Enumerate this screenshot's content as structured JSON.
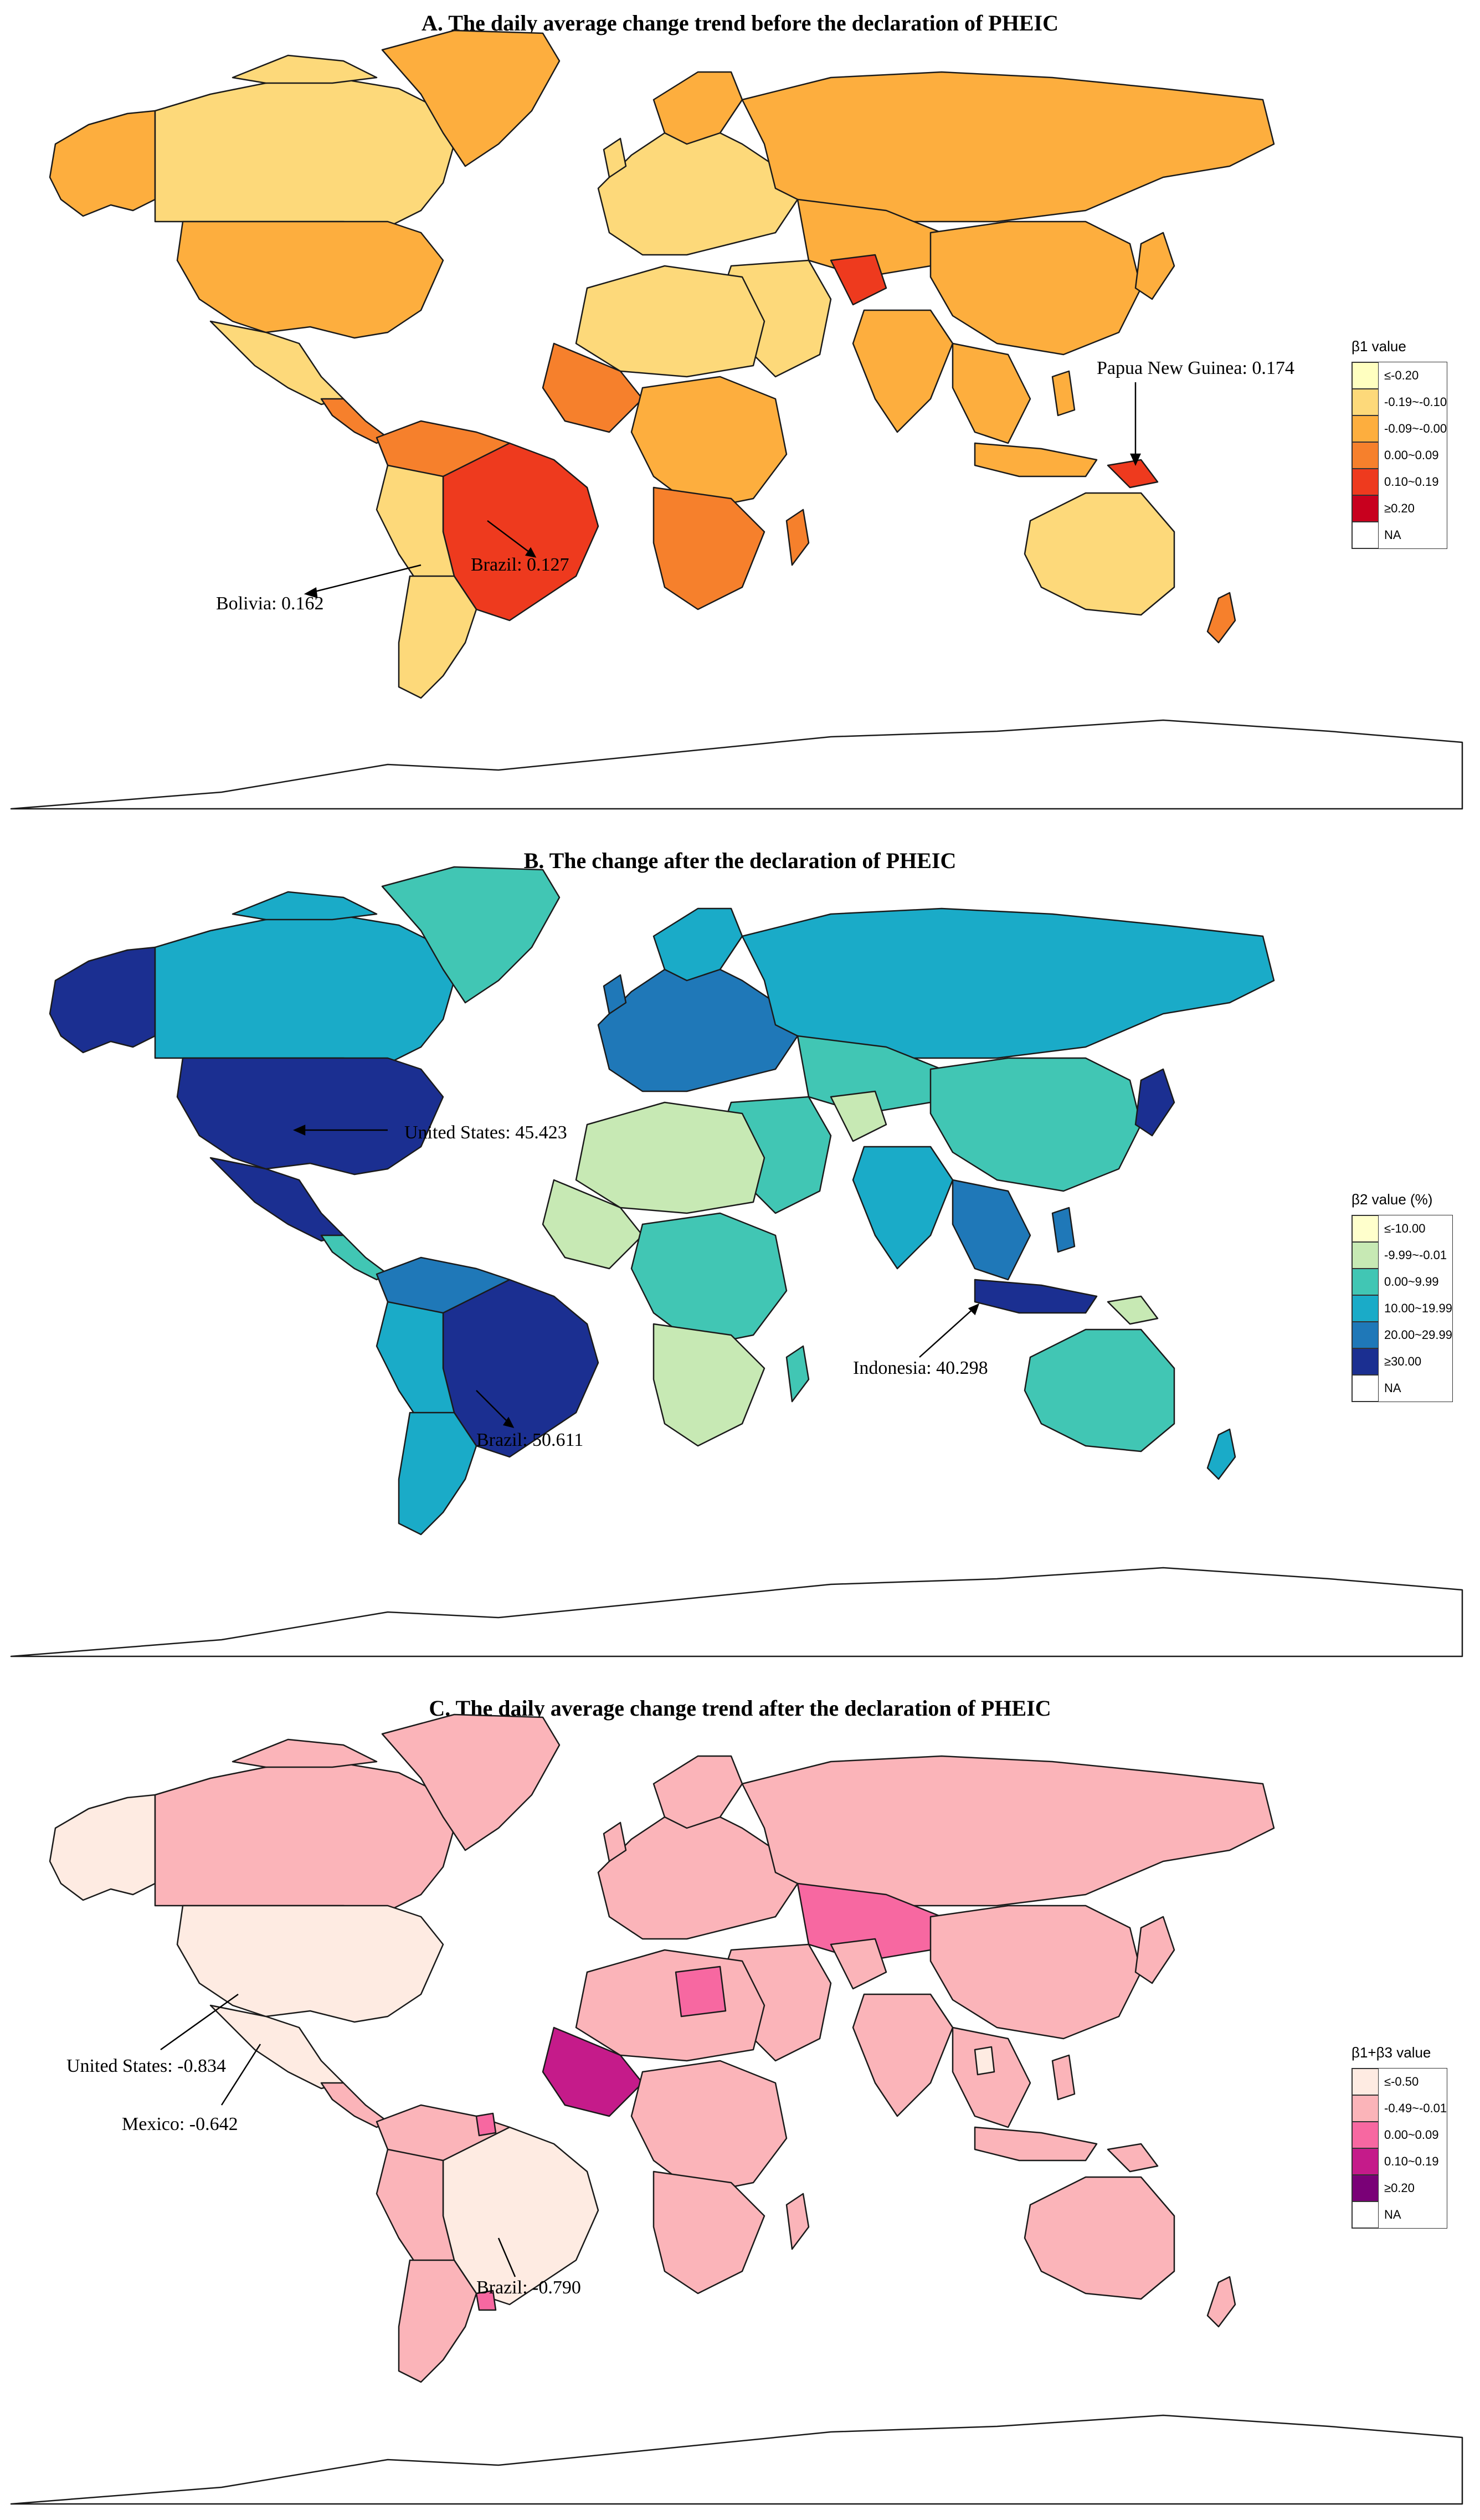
{
  "panels": [
    {
      "title": "A. The daily average change trend before the declaration of PHEIC",
      "legend": {
        "title": "β1 value",
        "items": [
          {
            "label": "≤-0.20",
            "color": "#ffffc0"
          },
          {
            "label": "-0.19~-0.10",
            "color": "#fdd97a"
          },
          {
            "label": "-0.09~-0.00",
            "color": "#fdae3e"
          },
          {
            "label": "0.00~0.09",
            "color": "#f6802c"
          },
          {
            "label": "0.10~0.19",
            "color": "#ee3a1e"
          },
          {
            "label": "≥0.20",
            "color": "#c8001e"
          },
          {
            "label": "NA",
            "color": "#ffffff"
          }
        ]
      },
      "annotations": [
        {
          "text": "Papua New Guinea: 0.174"
        },
        {
          "text": "Bolivia: 0.162"
        },
        {
          "text": "Brazil: 0.127"
        }
      ]
    },
    {
      "title": "B. The change after the declaration of PHEIC",
      "legend": {
        "title": "β2 value (%)",
        "items": [
          {
            "label": "≤-10.00",
            "color": "#ffffcc"
          },
          {
            "label": "-9.99~-0.01",
            "color": "#c7e9b4"
          },
          {
            "label": "0.00~9.99",
            "color": "#41c6b4"
          },
          {
            "label": "10.00~19.99",
            "color": "#1aabc8"
          },
          {
            "label": "20.00~29.99",
            "color": "#1f78b8"
          },
          {
            "label": "≥30.00",
            "color": "#1b2f91"
          },
          {
            "label": "NA",
            "color": "#ffffff"
          }
        ]
      },
      "annotations": [
        {
          "text": "United States: 45.423"
        },
        {
          "text": "Brazil: 50.611"
        },
        {
          "text": "Indonesia: 40.298"
        }
      ]
    },
    {
      "title": "C. The daily average change trend after the declaration of PHEIC",
      "legend": {
        "title": "β1+β3 value",
        "items": [
          {
            "label": "≤-0.50",
            "color": "#feebe2"
          },
          {
            "label": "-0.49~-0.01",
            "color": "#fbb4b9"
          },
          {
            "label": "0.00~0.09",
            "color": "#f768a1"
          },
          {
            "label": "0.10~0.19",
            "color": "#c51b8a"
          },
          {
            "label": "≥0.20",
            "color": "#7a0177"
          },
          {
            "label": "NA",
            "color": "#ffffff"
          }
        ]
      },
      "annotations": [
        {
          "text": "United States: -0.834"
        },
        {
          "text": "Mexico: -0.642"
        },
        {
          "text": "Brazil: -0.790"
        }
      ]
    }
  ]
}
